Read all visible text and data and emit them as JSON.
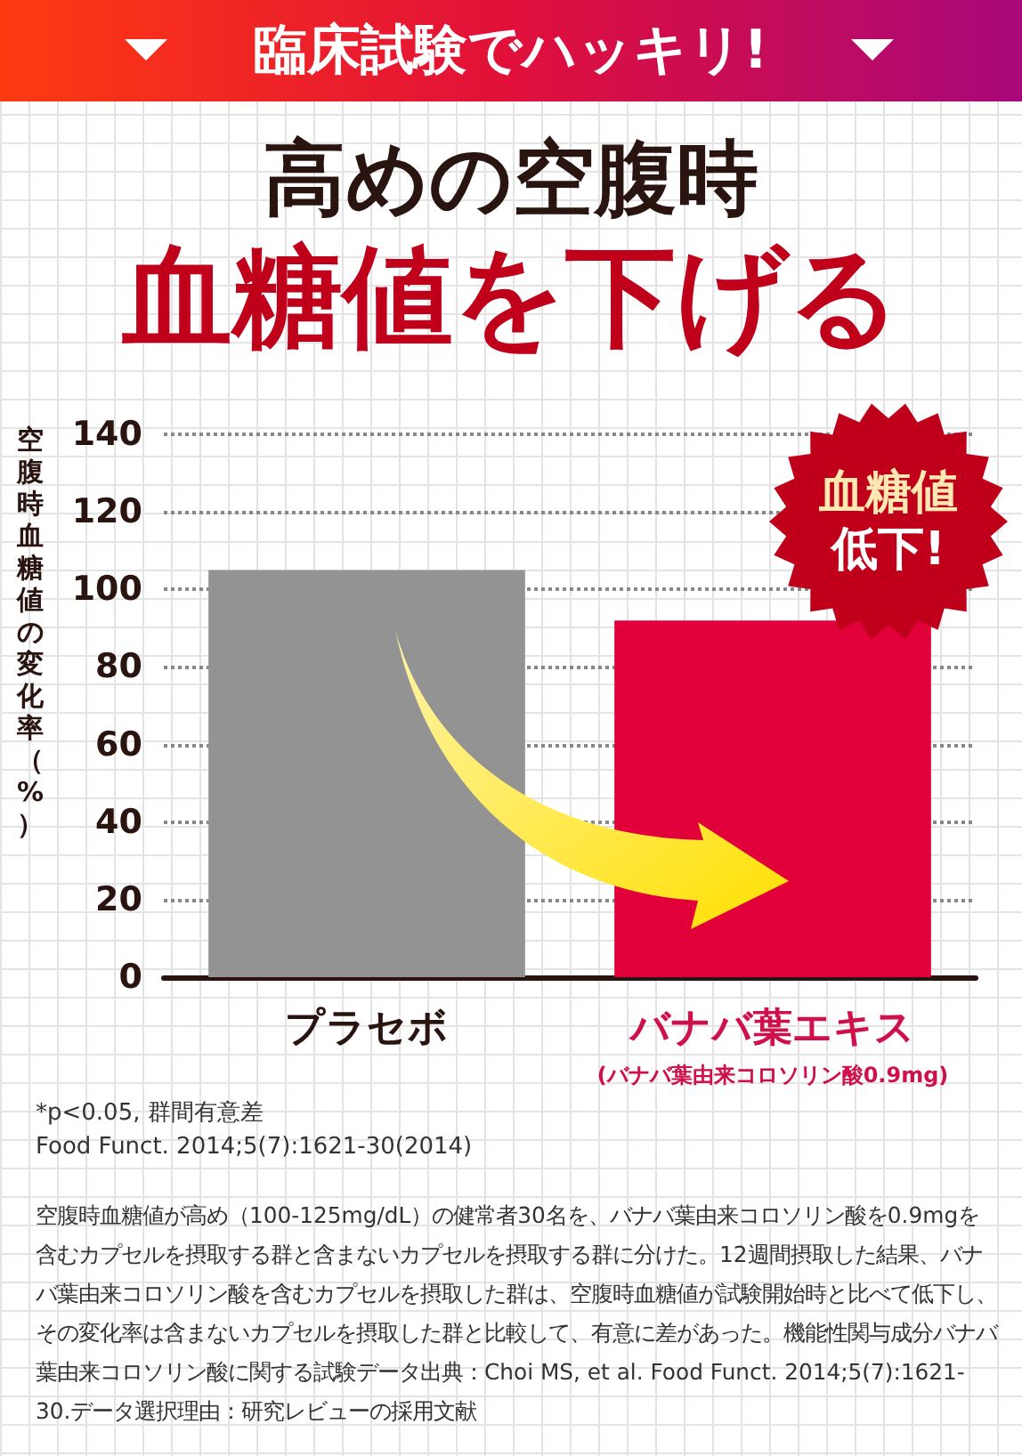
{
  "chart_data": {
    "type": "bar",
    "title": "高めの空腹時",
    "subtitle": "血糖値を下げる",
    "ylabel": "空腹時血糖値の変化率（%）",
    "categories": [
      "プラセボ",
      "バナバ葉エキス\n(バナバ葉由来コロソリン酸0.9mg)"
    ],
    "values": [
      105,
      92
    ],
    "colors": [
      "#939393",
      "#e2003a"
    ],
    "ylim": [
      0,
      140
    ],
    "yticks": [
      0,
      20,
      40,
      60,
      80,
      100,
      120,
      140
    ],
    "grid": "y",
    "annotations": [
      "臨床試験でハッキリ!",
      "血糖値",
      "低下!",
      "*p<0.05, 群間有意差",
      "Food Funct. 2014;5(7):1621-30(2014)",
      "空腹時血糖値が高め（100-125mg/dL）の健常者30名を、バナバ葉由来コロソリン酸を0.9mgを含むカプセルを摂取する群と含まないカプセルを摂取する群に分けた。12週間摂取した結果、バナバ葉由来コロソリン酸を含むカプセルを摂取した群は、空腹時血糖値が試験開始時と比べて低下し、その変化率は含まないカプセルを摂取した群と比較して、有意に差があった。機能性関与成分バナバ葉由来コロソリン酸に関する試験データ出典：Choi MS, et al. Food Funct. 2014;5(7):1621-30.データ選択理由：研究レビューの採用文献"
    ]
  }
}
